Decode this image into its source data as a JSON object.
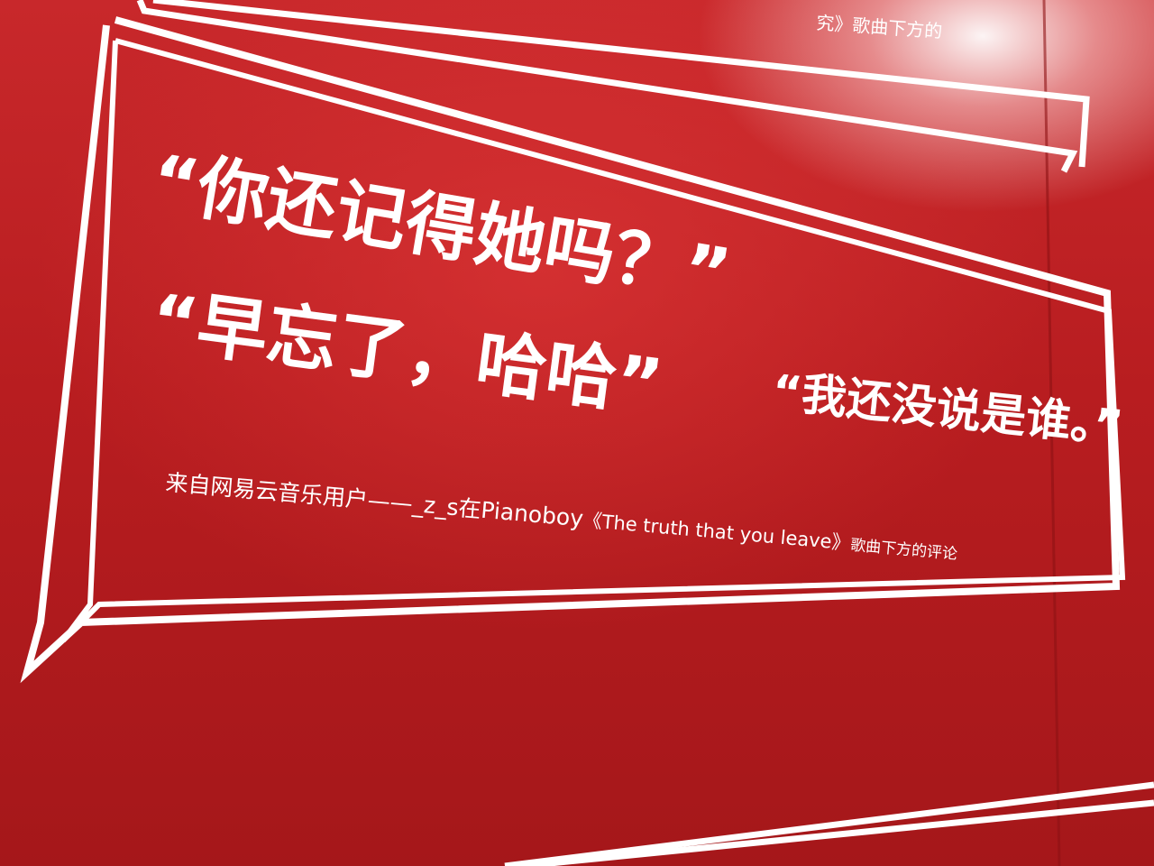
{
  "top_partial": {
    "line1": "究》歌曲下方的"
  },
  "quotes": {
    "line1": "“你还记得她吗？”",
    "line2": "“早忘了，哈哈”",
    "line3": "“我还没说是谁。”"
  },
  "caption": {
    "prefix": "来自网易云音乐用户——_z_s在Pianoboy",
    "song": "《The truth that you leave》",
    "suffix": "歌曲下方的评论"
  },
  "colors": {
    "background": "#b81d20",
    "frame": "#ffffff",
    "text": "#ffffff"
  }
}
